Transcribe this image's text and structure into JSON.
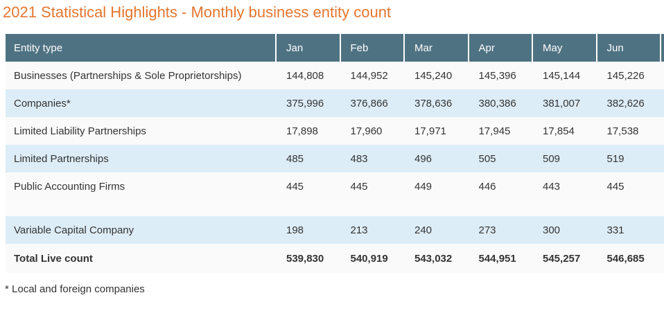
{
  "page": {
    "title": "2021 Statistical Highlights - Monthly business entity count",
    "footnote": "* Local and foreign companies"
  },
  "table": {
    "entity_type_header": "Entity type",
    "months": [
      "Jan",
      "Feb",
      "Mar",
      "Apr",
      "May",
      "Jun"
    ],
    "rows": [
      {
        "label": "Businesses (Partnerships & Sole Proprietorships)",
        "variant": "plain",
        "values": [
          "144,808",
          "144,952",
          "145,240",
          "145,396",
          "145,144",
          "145,226"
        ]
      },
      {
        "label": "Companies*",
        "variant": "highlight",
        "values": [
          "375,996",
          "376,866",
          "378,636",
          "380,386",
          "381,007",
          "382,626"
        ]
      },
      {
        "label": "Limited Liability Partnerships",
        "variant": "plain",
        "values": [
          "17,898",
          "17,960",
          "17,971",
          "17,945",
          "17,854",
          "17,538"
        ]
      },
      {
        "label": "Limited Partnerships",
        "variant": "highlight",
        "values": [
          "485",
          "483",
          "496",
          "505",
          "509",
          "519"
        ]
      },
      {
        "label": "Public Accounting Firms",
        "variant": "plain",
        "values": [
          "445",
          "445",
          "449",
          "446",
          "443",
          "445"
        ]
      },
      {
        "label": "",
        "variant": "spacer",
        "values": [
          "",
          "",
          "",
          "",
          "",
          ""
        ]
      },
      {
        "label": "Variable Capital Company",
        "variant": "highlight",
        "values": [
          "198",
          "213",
          "240",
          "273",
          "300",
          "331"
        ]
      },
      {
        "label": "Total Live count",
        "variant": "total",
        "values": [
          "539,830",
          "540,919",
          "543,032",
          "544,951",
          "545,257",
          "546,685"
        ]
      }
    ]
  },
  "colors": {
    "title_orange": "#e5752e",
    "header_bg": "#4e7282",
    "header_text": "#ffffff",
    "row_highlight_bg": "#ddedf7",
    "row_plain_bg": "#fafafa",
    "body_text": "#333333"
  },
  "chart_data": {
    "type": "table",
    "title": "2021 Statistical Highlights - Monthly business entity count",
    "columns": [
      "Entity type",
      "Jan",
      "Feb",
      "Mar",
      "Apr",
      "May",
      "Jun"
    ],
    "rows": [
      {
        "entity_type": "Businesses (Partnerships & Sole Proprietorships)",
        "values": [
          144808,
          144952,
          145240,
          145396,
          145144,
          145226
        ]
      },
      {
        "entity_type": "Companies*",
        "values": [
          375996,
          376866,
          378636,
          380386,
          381007,
          382626
        ]
      },
      {
        "entity_type": "Limited Liability Partnerships",
        "values": [
          17898,
          17960,
          17971,
          17945,
          17854,
          17538
        ]
      },
      {
        "entity_type": "Limited Partnerships",
        "values": [
          485,
          483,
          496,
          505,
          509,
          519
        ]
      },
      {
        "entity_type": "Public Accounting Firms",
        "values": [
          445,
          445,
          449,
          446,
          443,
          445
        ]
      },
      {
        "entity_type": "Variable Capital Company",
        "values": [
          198,
          213,
          240,
          273,
          300,
          331
        ]
      },
      {
        "entity_type": "Total Live count",
        "values": [
          539830,
          540919,
          543032,
          544951,
          545257,
          546685
        ]
      }
    ],
    "footnote": "* Local and foreign companies",
    "layout": {
      "grid": "off",
      "header_style": "dark-teal-bar",
      "zebra_striping": true
    }
  }
}
